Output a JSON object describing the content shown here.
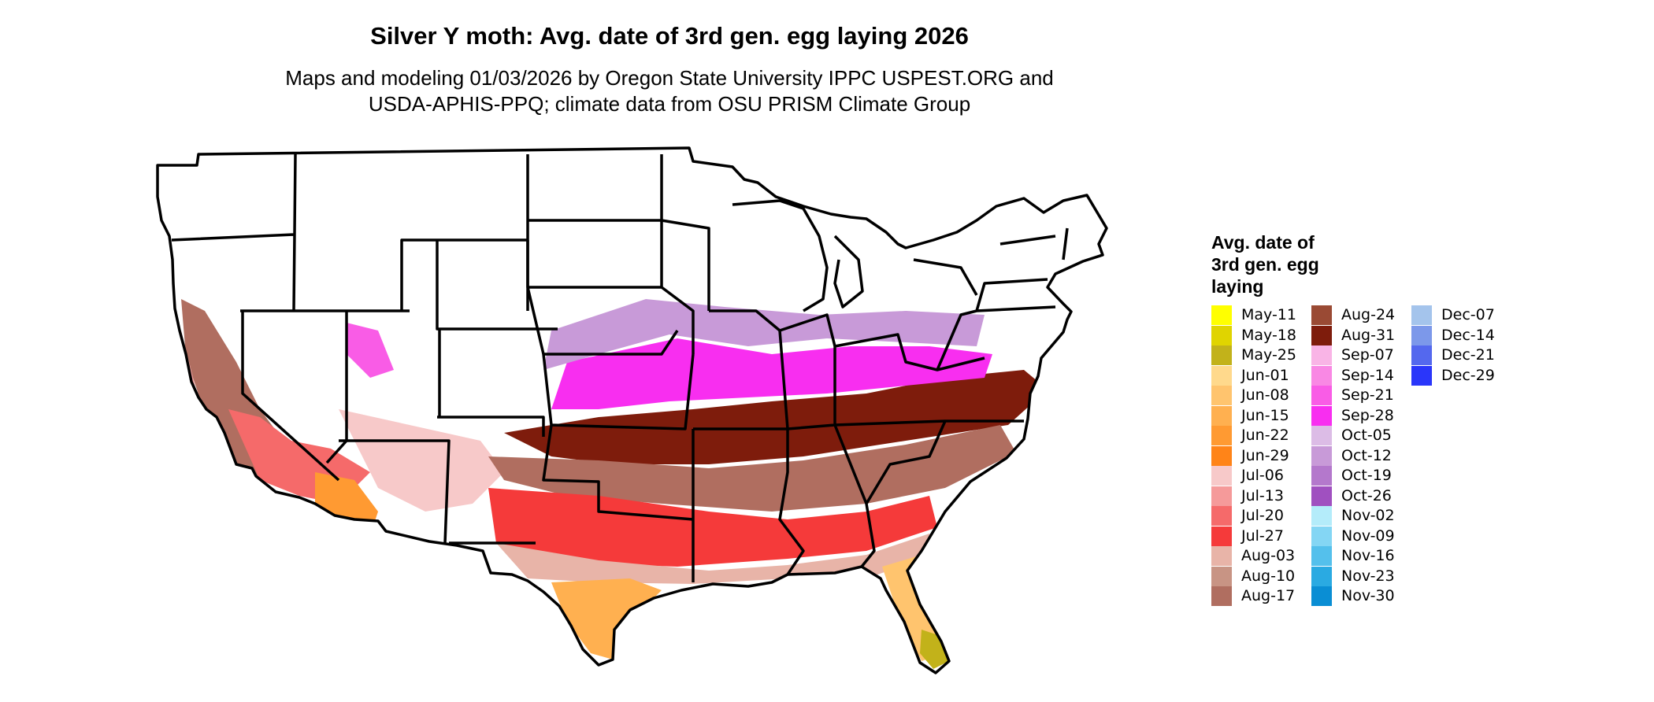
{
  "title": "Silver Y moth: Avg. date of 3rd gen. egg laying 2026",
  "subtitle_line1": "Maps and modeling 01/03/2026 by Oregon State University IPPC USPEST.ORG and",
  "subtitle_line2": "USDA-APHIS-PPQ; climate data from OSU PRISM Climate Group",
  "legend": {
    "title_lines": [
      "Avg. date of",
      "3rd gen. egg",
      "laying"
    ],
    "columns": [
      [
        {
          "label": "May-11",
          "color": "#ffff00"
        },
        {
          "label": "May-18",
          "color": "#e0d400"
        },
        {
          "label": "May-25",
          "color": "#c2b21a"
        },
        {
          "label": "Jun-01",
          "color": "#ffd98c"
        },
        {
          "label": "Jun-08",
          "color": "#ffc46e"
        },
        {
          "label": "Jun-15",
          "color": "#ffb050"
        },
        {
          "label": "Jun-22",
          "color": "#ff9a32"
        },
        {
          "label": "Jun-29",
          "color": "#ff8418"
        },
        {
          "label": "Jul-06",
          "color": "#f7c9c9"
        },
        {
          "label": "Jul-13",
          "color": "#f59a9a"
        },
        {
          "label": "Jul-20",
          "color": "#f56a6a"
        },
        {
          "label": "Jul-27",
          "color": "#f53a3a"
        },
        {
          "label": "Aug-03",
          "color": "#e8b4a8"
        },
        {
          "label": "Aug-10",
          "color": "#c89484"
        },
        {
          "label": "Aug-17",
          "color": "#b06e60"
        }
      ],
      [
        {
          "label": "Aug-24",
          "color": "#9a4a34"
        },
        {
          "label": "Aug-31",
          "color": "#7e1c0c"
        },
        {
          "label": "Sep-07",
          "color": "#f9b4e6"
        },
        {
          "label": "Sep-14",
          "color": "#f988e4"
        },
        {
          "label": "Sep-21",
          "color": "#f95ce6"
        },
        {
          "label": "Sep-28",
          "color": "#f82ef0"
        },
        {
          "label": "Oct-05",
          "color": "#dcbce6"
        },
        {
          "label": "Oct-12",
          "color": "#c89ad8"
        },
        {
          "label": "Oct-19",
          "color": "#b478cc"
        },
        {
          "label": "Oct-26",
          "color": "#a050c0"
        },
        {
          "label": "Nov-02",
          "color": "#b4ecfa"
        },
        {
          "label": "Nov-09",
          "color": "#84d6f4"
        },
        {
          "label": "Nov-16",
          "color": "#54c0ec"
        },
        {
          "label": "Nov-23",
          "color": "#2aaae2"
        },
        {
          "label": "Nov-30",
          "color": "#0a8ed4"
        }
      ],
      [
        {
          "label": "Dec-07",
          "color": "#a4c4ec"
        },
        {
          "label": "Dec-14",
          "color": "#7c98ea"
        },
        {
          "label": "Dec-21",
          "color": "#5468ee"
        },
        {
          "label": "Dec-29",
          "color": "#2a36fa"
        }
      ]
    ]
  }
}
